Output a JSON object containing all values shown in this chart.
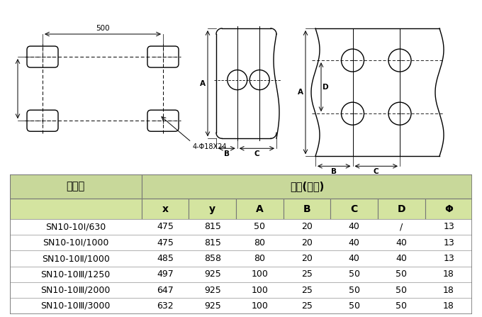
{
  "bg_color": "#ffffff",
  "table_header_bg": "#c8d89a",
  "table_subheader_bg": "#d4e4a0",
  "table_border_color": "#888888",
  "table_title_row": "型　号",
  "table_dim_label": "尺寸(毫米)",
  "table_col_headers": [
    "x",
    "y",
    "A",
    "B",
    "C",
    "D",
    "Φ"
  ],
  "table_rows": [
    [
      "SN10-10Ⅰ/630",
      "475",
      "815",
      "50",
      "20",
      "40",
      "/",
      "13"
    ],
    [
      "SN10-10Ⅰ/1000",
      "475",
      "815",
      "80",
      "20",
      "40",
      "40",
      "13"
    ],
    [
      "SN10-10Ⅱ/1000",
      "485",
      "858",
      "80",
      "20",
      "40",
      "40",
      "13"
    ],
    [
      "SN10-10Ⅲ/1250",
      "497",
      "925",
      "100",
      "25",
      "50",
      "50",
      "18"
    ],
    [
      "SN10-10Ⅲ/2000",
      "647",
      "925",
      "100",
      "25",
      "50",
      "50",
      "18"
    ],
    [
      "SN10-10Ⅲ/3000",
      "632",
      "925",
      "100",
      "25",
      "50",
      "50",
      "18"
    ]
  ],
  "dim_label_500": "500",
  "dim_label_bolt": "4-Φ18X24"
}
